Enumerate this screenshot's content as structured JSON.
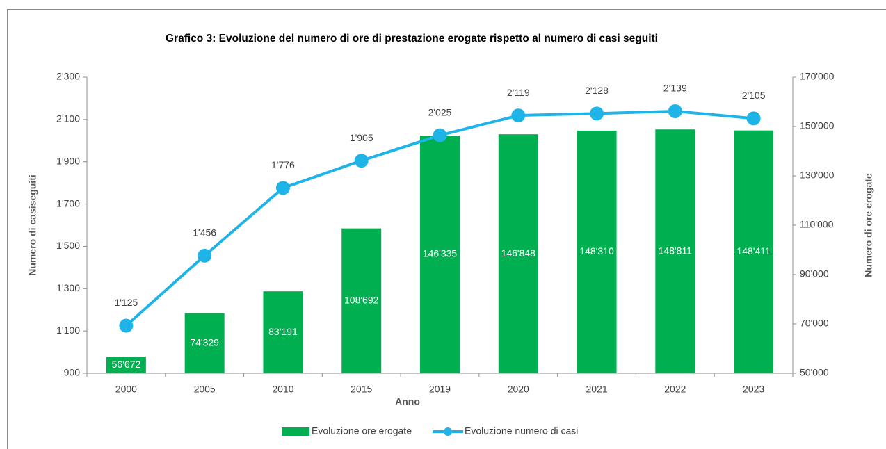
{
  "chart_data": {
    "type": "combo",
    "title": "Grafico 3: Evoluzione del numero di ore di prestazione erogate rispetto  al numero di casi seguiti",
    "x_label": "Anno",
    "y_label": "Numero di casiseguiti",
    "y2_label": "Numero di ore erogate",
    "categories": [
      "2000",
      "2005",
      "2010",
      "2015",
      "2019",
      "2020",
      "2021",
      "2022",
      "2023"
    ],
    "series": [
      {
        "name": "Evoluzione ore erogate",
        "type": "bar",
        "axis": "y2",
        "color": "#00b050",
        "values": [
          56672,
          74329,
          83191,
          108692,
          146335,
          146848,
          148310,
          148811,
          148411
        ],
        "value_labels": [
          "56'672",
          "74'329",
          "83'191",
          "108'692",
          "146'335",
          "146'848",
          "148'310",
          "148'811",
          "148'411"
        ]
      },
      {
        "name": "Evoluzione numero di casi",
        "type": "line",
        "axis": "y",
        "color": "#1fb4e8",
        "values": [
          1125,
          1456,
          1776,
          1905,
          2025,
          2119,
          2128,
          2139,
          2105
        ],
        "value_labels": [
          "1'125",
          "1'456",
          "1'776",
          "1'905",
          "2'025",
          "2'119",
          "2'128",
          "2'139",
          "2'105"
        ]
      }
    ],
    "ylim": [
      900,
      2300
    ],
    "yticks": [
      900,
      {
        "value": 1100,
        "label": "1'100"
      },
      {
        "value": 1300,
        "label": "1'300"
      },
      {
        "value": 1500,
        "label": "1'500"
      },
      {
        "value": 1700,
        "label": "1'700"
      },
      {
        "value": 1900,
        "label": "1'900"
      },
      {
        "value": 2100,
        "label": "2'100"
      },
      {
        "value": 2300,
        "label": "2'300"
      }
    ],
    "y2lim": [
      50000,
      170000
    ],
    "y2ticks": [
      {
        "value": 50000,
        "label": "50'000"
      },
      {
        "value": 70000,
        "label": "70'000"
      },
      {
        "value": 90000,
        "label": "90'000"
      },
      {
        "value": 110000,
        "label": "110'000"
      },
      {
        "value": 130000,
        "label": "130'000"
      },
      {
        "value": 150000,
        "label": "150'000"
      },
      {
        "value": 170000,
        "label": "170'000"
      }
    ],
    "grid": false,
    "legend": "bottom"
  }
}
